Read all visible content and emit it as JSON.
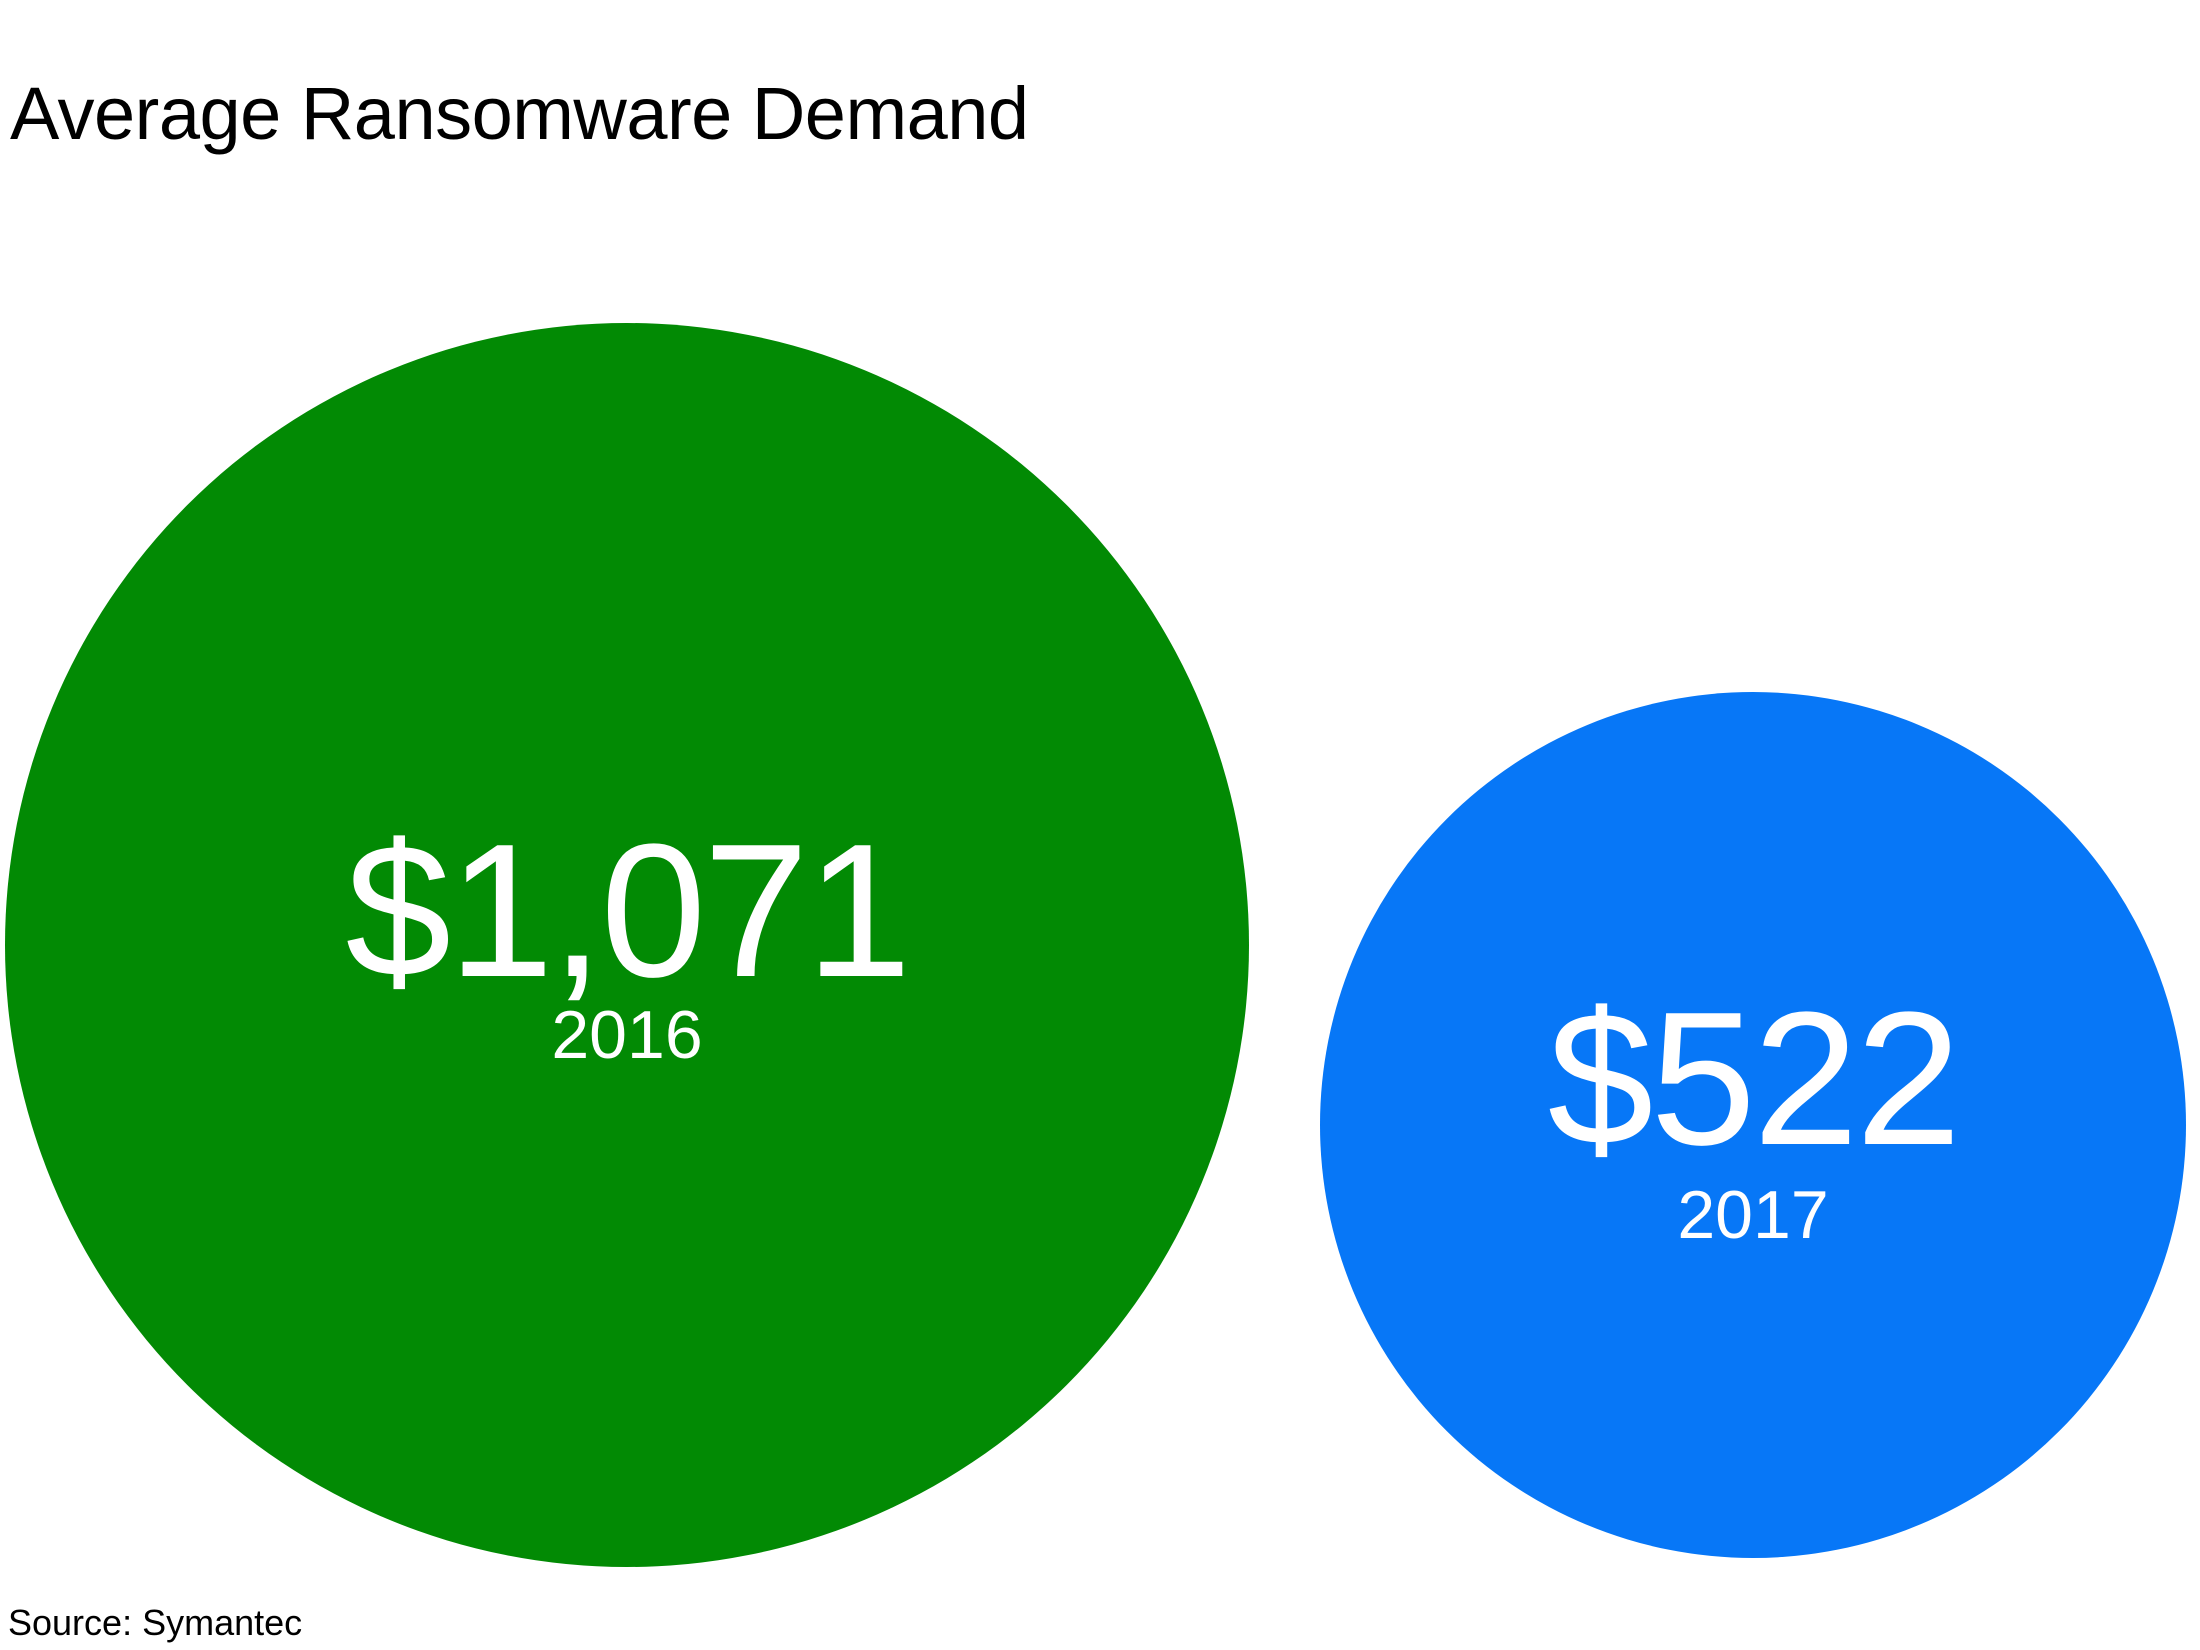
{
  "header": {
    "title": "Average Ransomware Demand"
  },
  "footer": {
    "source": "Source: Symantec"
  },
  "colors": {
    "background": "#ffffff",
    "title_text": "#000000",
    "bubble_2016": "#028A04",
    "bubble_2017": "#0777F7",
    "bubble_text": "#ffffff"
  },
  "chart_data": {
    "type": "scatter",
    "subtype": "proportional-area-bubbles",
    "title": "Average Ransomware Demand",
    "source": "Source: Symantec",
    "categories": [
      "2016",
      "2017"
    ],
    "values": [
      1071,
      522
    ],
    "series": [
      {
        "year": "2016",
        "value": 1071,
        "label": "$1,071",
        "color": "#028A04"
      },
      {
        "year": "2017",
        "value": 522,
        "label": "$522",
        "color": "#0777F7"
      }
    ],
    "layout": {
      "axes": "none",
      "grid": false,
      "legend": "none",
      "value_labels": "inside bubbles",
      "area_encoding": "circle area proportional to value",
      "larger_bubble_position": "left",
      "smaller_bubble_position": "right"
    }
  }
}
